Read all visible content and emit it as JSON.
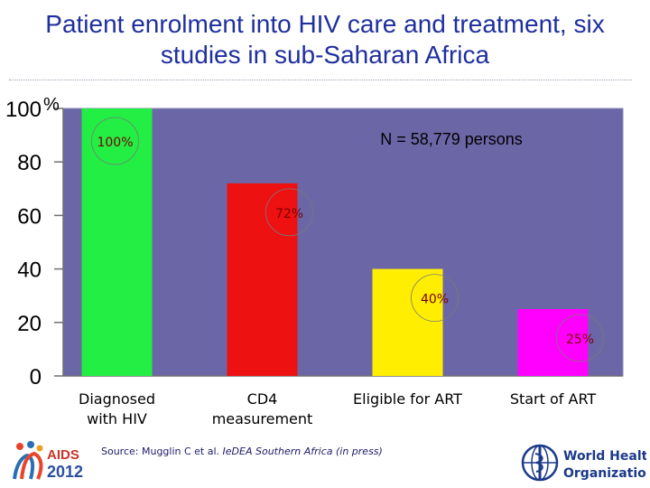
{
  "slide": {
    "title_line1": "Patient enrolment into HIV care and treatment, six",
    "title_line2": "studies in sub-Saharan Africa",
    "source_prefix": "Source: Mugglin C et al. ",
    "source_italic": "IeDEA Southern Africa (in press)",
    "aids_logo_text": "AIDS",
    "aids_logo_year": "2012",
    "who_line1": "World Health",
    "who_line2": "Organization"
  },
  "chart_data": {
    "type": "bar",
    "title": "Patient enrolment into HIV care and treatment, six studies in sub-Saharan Africa",
    "annotation": "N = 58,779 persons",
    "categories": [
      [
        "Diagnosed",
        "with HIV"
      ],
      [
        "CD4",
        "measurement"
      ],
      [
        "Eligible for ART"
      ],
      [
        "Start of ART"
      ]
    ],
    "values": [
      100,
      72,
      40,
      25
    ],
    "data_labels": [
      "100%",
      "72%",
      "40%",
      "25%"
    ],
    "bar_colors": [
      "#22ee44",
      "#ee1111",
      "#ffee00",
      "#ff00ff"
    ],
    "plot_bg": "#6b66a6",
    "ylim": [
      0,
      100
    ],
    "yticks": [
      0,
      20,
      40,
      60,
      80,
      100
    ],
    "ytick_labels": [
      "0",
      "20",
      "40",
      "60",
      "80",
      "100"
    ],
    "y_unit": "%"
  }
}
